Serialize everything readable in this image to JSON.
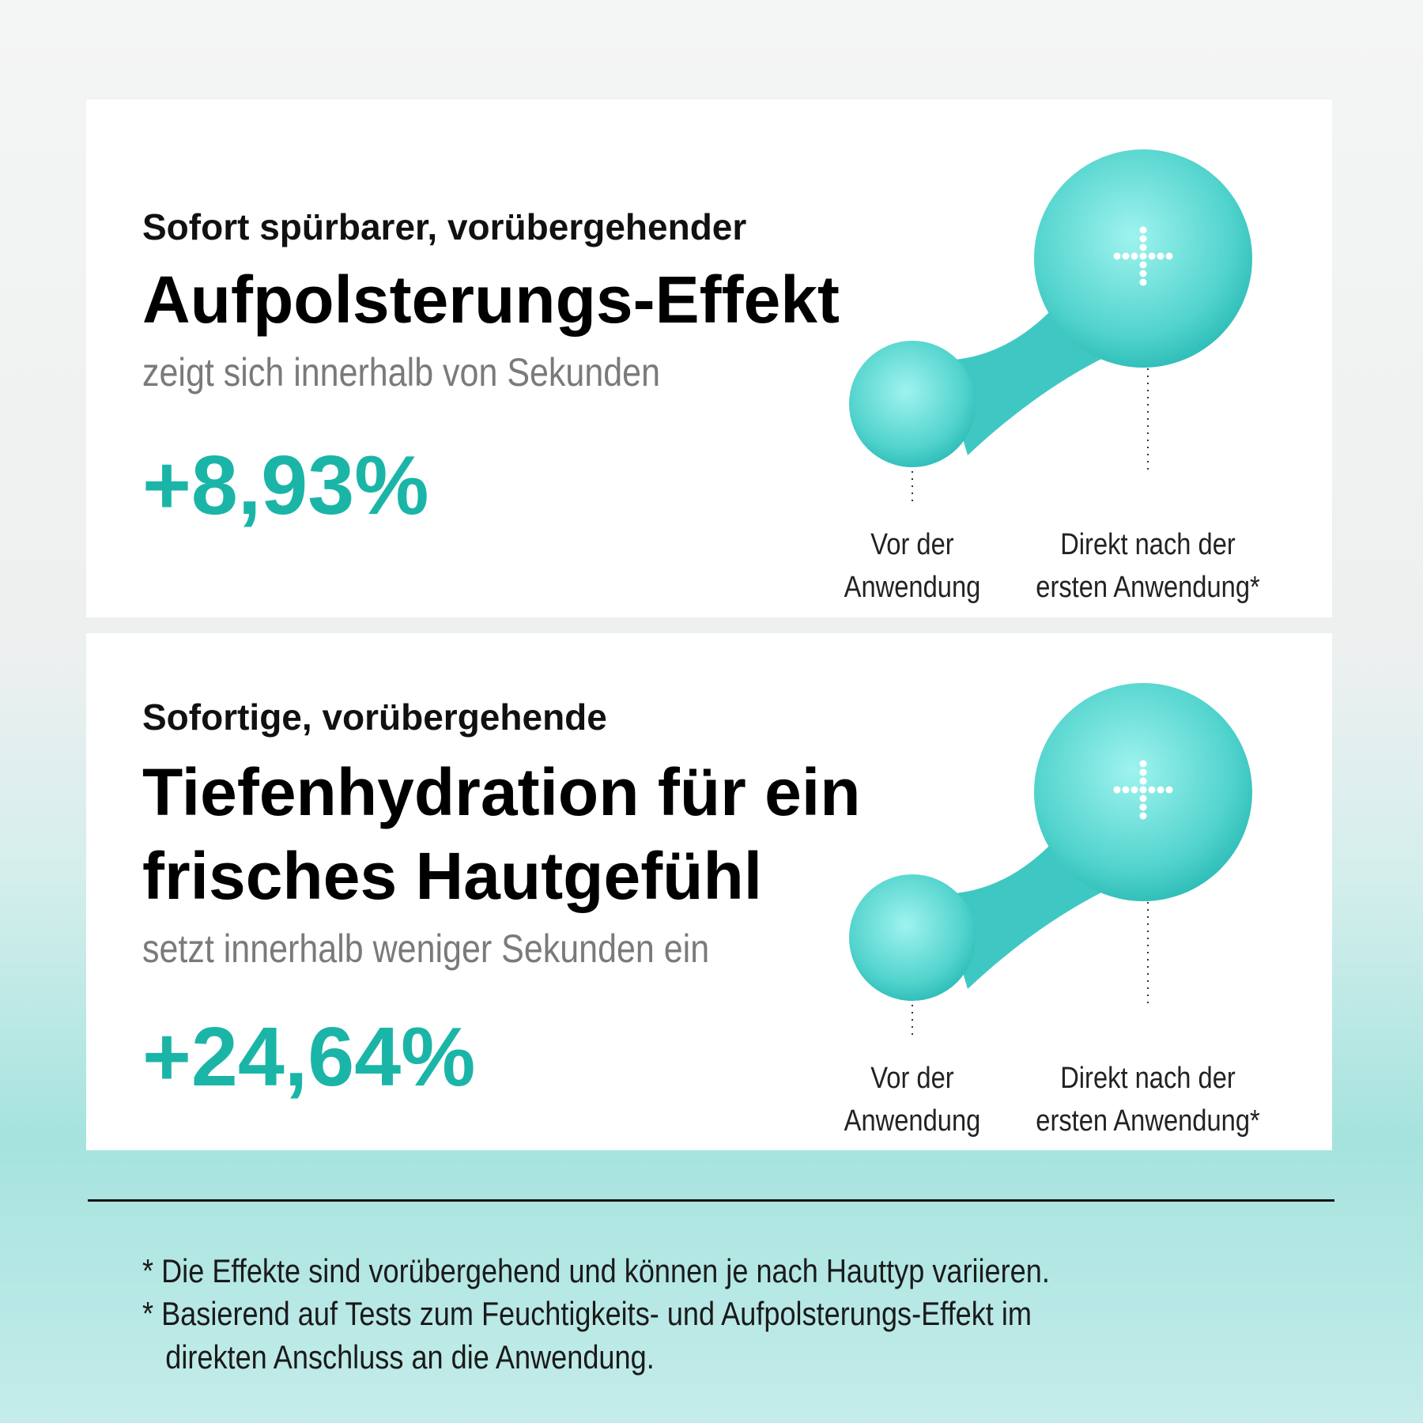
{
  "cards": [
    {
      "intro": "Sofort spürbarer, vorübergehender",
      "headline": [
        "Aufpolsterungs-Effekt"
      ],
      "subline": "zeigt sich innerhalb von Sekunden",
      "stat": "+8,93%",
      "before_label": [
        "Vor der",
        "Anwendung"
      ],
      "after_label": [
        "Direkt nach der",
        "ersten Anwendung*"
      ]
    },
    {
      "intro": "Sofortige, vorübergehende",
      "headline": [
        "Tiefenhydration für ein",
        "frisches Hautgefühl"
      ],
      "subline": "setzt innerhalb weniger Sekunden ein",
      "stat": "+24,64%",
      "before_label": [
        "Vor der",
        "Anwendung"
      ],
      "after_label": [
        "Direkt nach der",
        "ersten Anwendung*"
      ]
    }
  ],
  "footnotes": [
    [
      "* Die Effekte sind vorübergehend und können je nach Hauttyp variieren."
    ],
    [
      "* Basierend auf Tests zum Feuchtigkeits- und Aufpolsterungs-Effekt im",
      "direkten Anschluss an die Anwendung."
    ]
  ]
}
